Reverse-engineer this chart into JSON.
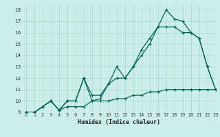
{
  "xlabel": "Humidex (Indice chaleur)",
  "bg_color": "#cceee8",
  "grid_color": "#aaddcc",
  "line_color": "#006655",
  "xlim": [
    -0.5,
    23
  ],
  "ylim": [
    9,
    18.5
  ],
  "xticks": [
    0,
    1,
    2,
    3,
    4,
    5,
    6,
    7,
    8,
    9,
    10,
    11,
    12,
    13,
    14,
    15,
    16,
    17,
    18,
    19,
    20,
    21,
    22,
    23
  ],
  "yticks": [
    9,
    10,
    11,
    12,
    13,
    14,
    15,
    16,
    17,
    18
  ],
  "line1_x": [
    0,
    1,
    2,
    3,
    4,
    5,
    6,
    7,
    8,
    9,
    10,
    11,
    12,
    13,
    14,
    15,
    16,
    17,
    18,
    19,
    20,
    21,
    22,
    23
  ],
  "line1_y": [
    9,
    9,
    9.5,
    10,
    9.2,
    9.5,
    9.5,
    9.5,
    10,
    10,
    10,
    10.2,
    10.2,
    10.5,
    10.5,
    10.8,
    10.8,
    11,
    11,
    11,
    11,
    11,
    11,
    11
  ],
  "line2_x": [
    0,
    1,
    2,
    3,
    4,
    5,
    6,
    7,
    8,
    9,
    10,
    11,
    12,
    13,
    14,
    15,
    16,
    17,
    18,
    19,
    20,
    21,
    22,
    23
  ],
  "line2_y": [
    9,
    9,
    9.5,
    10,
    9.2,
    10,
    10,
    12,
    10,
    10.2,
    11.5,
    12,
    12,
    13,
    14,
    15,
    16.5,
    16.5,
    16.5,
    16,
    16,
    15.5,
    13,
    11
  ],
  "line3_x": [
    0,
    1,
    2,
    3,
    4,
    5,
    6,
    7,
    8,
    9,
    10,
    11,
    12,
    13,
    14,
    15,
    16,
    17,
    18,
    19,
    20,
    21,
    22,
    23
  ],
  "line3_y": [
    9,
    9,
    9.5,
    10,
    9.2,
    10,
    10,
    12,
    10.5,
    10.5,
    11.5,
    13,
    12,
    13,
    14.5,
    15.5,
    16.5,
    18,
    17.2,
    17,
    16,
    15.5,
    13,
    11
  ]
}
